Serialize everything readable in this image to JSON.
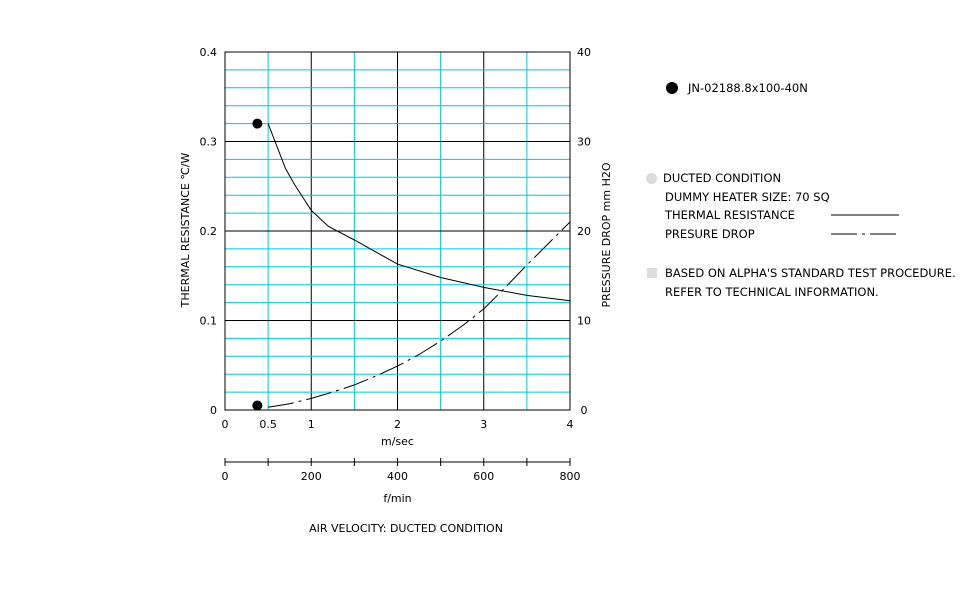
{
  "chart_data": {
    "type": "line",
    "xlabel_primary": "m/sec",
    "xlabel_secondary": "f/min",
    "xlabel_bottom": "AIR VELOCITY:  DUCTED CONDITION",
    "ylabel_left": "THERMAL  RESISTANCE   ℃/W",
    "ylabel_right": "PRESSURE  DROP    mm H2O",
    "x_ticks": [
      "0",
      "0.5",
      "1",
      "2",
      "3",
      "4"
    ],
    "x2_ticks": [
      "0",
      "200",
      "400",
      "600",
      "800"
    ],
    "y_left_ticks": [
      "0",
      "0.1",
      "0.2",
      "0.3",
      "0.4"
    ],
    "y_right_ticks": [
      "0",
      "10",
      "20",
      "30",
      "40"
    ],
    "xlim": [
      0,
      4
    ],
    "x2lim": [
      0,
      800
    ],
    "ylim_left": [
      0,
      0.4
    ],
    "ylim_right": [
      0,
      40
    ],
    "grid": true,
    "series": [
      {
        "key": "thermal",
        "axis": "left",
        "style": "solid",
        "x": [
          0.5,
          0.6,
          0.7,
          0.8,
          0.9,
          1.0,
          1.2,
          1.5,
          2.0,
          2.5,
          3.0,
          3.5,
          4.0
        ],
        "y": [
          0.32,
          0.295,
          0.27,
          0.253,
          0.238,
          0.223,
          0.205,
          0.19,
          0.163,
          0.148,
          0.137,
          0.128,
          0.122
        ]
      },
      {
        "key": "pressure",
        "axis": "right",
        "style": "dashdot",
        "x": [
          0.5,
          0.75,
          1.0,
          1.25,
          1.5,
          1.75,
          2.0,
          2.25,
          2.5,
          2.75,
          3.0,
          3.25,
          3.5,
          3.75,
          4.0
        ],
        "y": [
          0.3,
          0.7,
          1.3,
          2.0,
          2.8,
          3.8,
          4.9,
          6.2,
          7.7,
          9.4,
          11.3,
          13.7,
          16.2,
          18.6,
          21.0
        ]
      }
    ],
    "markers": [
      {
        "x": 0.375,
        "y": 0.32,
        "axis": "left"
      },
      {
        "x": 0.375,
        "y": 0.5,
        "axis": "right"
      }
    ]
  },
  "legend": {
    "part_number": "JN-02188.8x100-40N",
    "condition": "DUCTED CONDITION",
    "heater_size": "DUMMY HEATER SIZE:  70 SQ",
    "thermal_label": "THERMAL RESISTANCE",
    "pressure_label": "PRESURE DROP",
    "note_line1": "BASED ON ALPHA'S STANDARD TEST PROCEDURE.",
    "note_line2": "REFER TO TECHNICAL INFORMATION."
  }
}
